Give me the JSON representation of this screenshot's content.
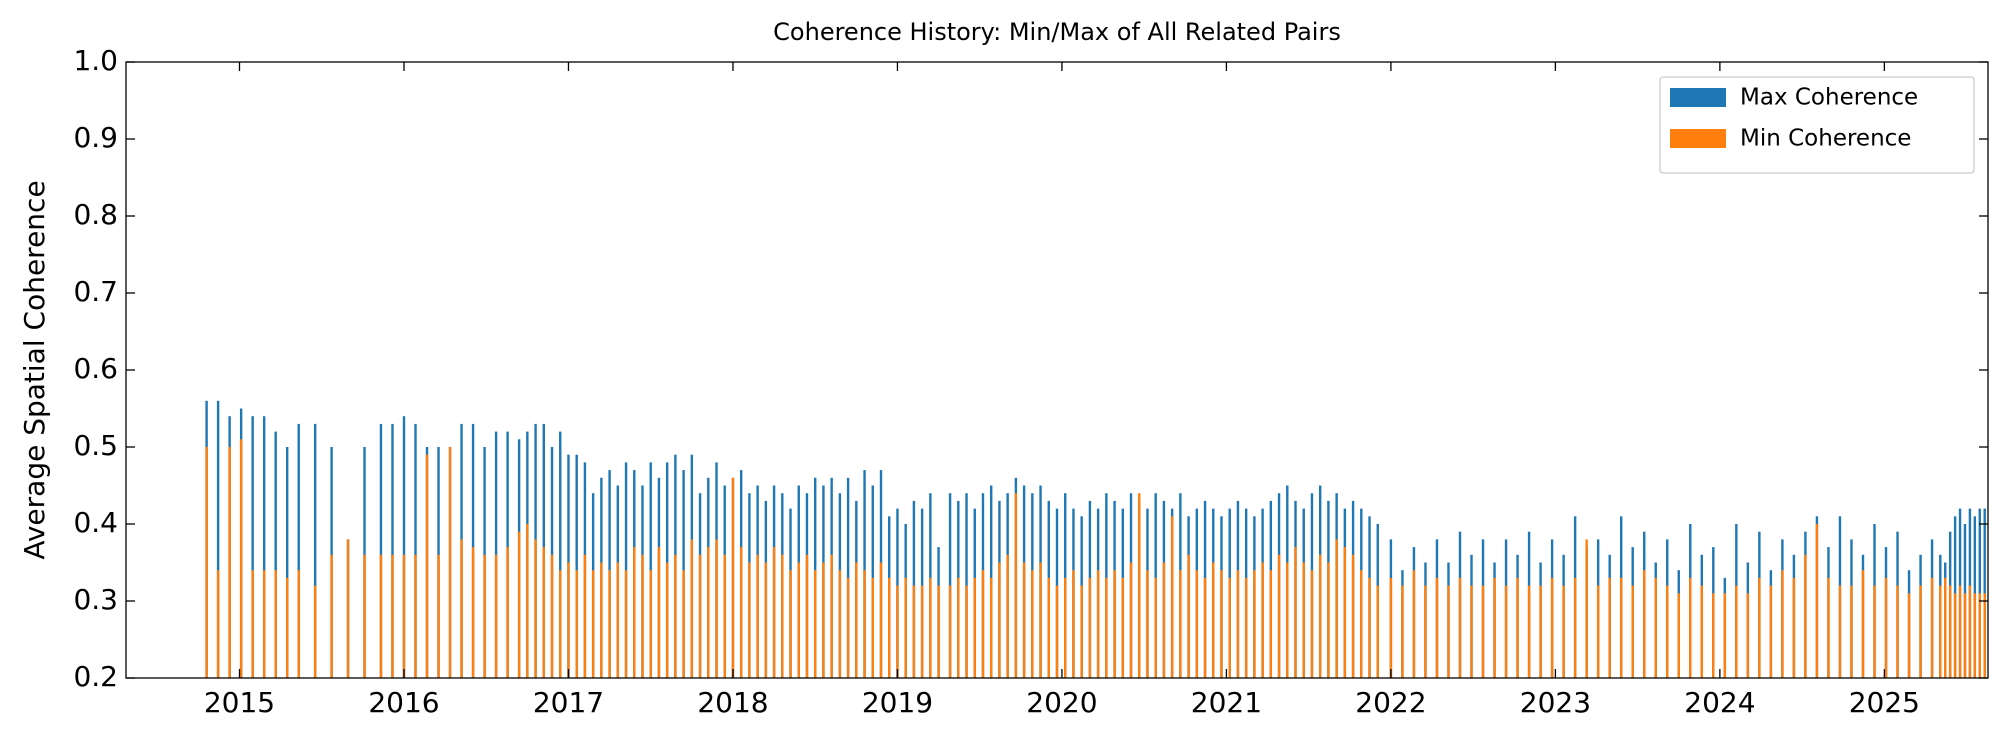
{
  "chart_data": {
    "type": "bar",
    "title": "Coherence History: Min/Max of All Related Pairs",
    "y_label": "Average Spatial Coherence",
    "xlim": [
      2014.31,
      2025.63
    ],
    "xticks": [
      2015,
      2016,
      2017,
      2018,
      2019,
      2020,
      2021,
      2022,
      2023,
      2024,
      2025
    ],
    "ylim": [
      0.2,
      1.0
    ],
    "yticks": [
      {
        "value": 0.2,
        "label": "0.2"
      },
      {
        "value": 0.3,
        "label": "0.3"
      },
      {
        "value": 0.4,
        "label": "0.4"
      },
      {
        "value": 0.5,
        "label": "0.5"
      },
      {
        "value": 0.6,
        "label": "0.6"
      },
      {
        "value": 0.7,
        "label": "0.7"
      },
      {
        "value": 0.8,
        "label": "0.8"
      },
      {
        "value": 0.9,
        "label": "0.9"
      },
      {
        "value": 1.0,
        "label": "1.0"
      }
    ],
    "legend": "upper right",
    "grid": false,
    "x": [
      2014.8,
      2014.87,
      2014.94,
      2015.01,
      2015.08,
      2015.15,
      2015.22,
      2015.29,
      2015.36,
      2015.46,
      2015.56,
      2015.66,
      2015.76,
      2015.86,
      2015.93,
      2016.0,
      2016.07,
      2016.14,
      2016.21,
      2016.28,
      2016.35,
      2016.42,
      2016.49,
      2016.56,
      2016.63,
      2016.7,
      2016.75,
      2016.8,
      2016.85,
      2016.9,
      2016.95,
      2017.0,
      2017.05,
      2017.1,
      2017.15,
      2017.2,
      2017.25,
      2017.3,
      2017.35,
      2017.4,
      2017.45,
      2017.5,
      2017.55,
      2017.6,
      2017.65,
      2017.7,
      2017.75,
      2017.8,
      2017.85,
      2017.9,
      2017.95,
      2018.0,
      2018.05,
      2018.1,
      2018.15,
      2018.2,
      2018.25,
      2018.3,
      2018.35,
      2018.4,
      2018.45,
      2018.5,
      2018.55,
      2018.6,
      2018.65,
      2018.7,
      2018.75,
      2018.8,
      2018.85,
      2018.9,
      2018.95,
      2019.0,
      2019.05,
      2019.1,
      2019.15,
      2019.2,
      2019.25,
      2019.32,
      2019.37,
      2019.42,
      2019.47,
      2019.52,
      2019.57,
      2019.62,
      2019.67,
      2019.72,
      2019.77,
      2019.82,
      2019.87,
      2019.92,
      2019.97,
      2020.02,
      2020.07,
      2020.12,
      2020.17,
      2020.22,
      2020.27,
      2020.32,
      2020.37,
      2020.42,
      2020.47,
      2020.52,
      2020.57,
      2020.62,
      2020.67,
      2020.72,
      2020.77,
      2020.82,
      2020.87,
      2020.92,
      2020.97,
      2021.02,
      2021.07,
      2021.12,
      2021.17,
      2021.22,
      2021.27,
      2021.32,
      2021.37,
      2021.42,
      2021.47,
      2021.52,
      2021.57,
      2021.62,
      2021.67,
      2021.72,
      2021.77,
      2021.82,
      2021.87,
      2021.92,
      2022.0,
      2022.07,
      2022.14,
      2022.21,
      2022.28,
      2022.35,
      2022.42,
      2022.49,
      2022.56,
      2022.63,
      2022.7,
      2022.77,
      2022.84,
      2022.91,
      2022.98,
      2023.05,
      2023.12,
      2023.19,
      2023.26,
      2023.33,
      2023.4,
      2023.47,
      2023.54,
      2023.61,
      2023.68,
      2023.75,
      2023.82,
      2023.89,
      2023.96,
      2024.03,
      2024.1,
      2024.17,
      2024.24,
      2024.31,
      2024.38,
      2024.45,
      2024.52,
      2024.59,
      2024.66,
      2024.73,
      2024.8,
      2024.87,
      2024.94,
      2025.01,
      2025.08,
      2025.15,
      2025.22,
      2025.29,
      2025.34,
      2025.37,
      2025.4,
      2025.43,
      2025.46,
      2025.49,
      2025.52,
      2025.55,
      2025.58,
      2025.61
    ],
    "series": [
      {
        "name": "Max Coherence",
        "color": "#1f77b4",
        "values": [
          0.56,
          0.56,
          0.54,
          0.55,
          0.54,
          0.54,
          0.52,
          0.5,
          0.53,
          0.53,
          0.5,
          0.38,
          0.5,
          0.53,
          0.53,
          0.54,
          0.53,
          0.5,
          0.5,
          0.5,
          0.53,
          0.53,
          0.5,
          0.52,
          0.52,
          0.51,
          0.52,
          0.53,
          0.53,
          0.5,
          0.52,
          0.49,
          0.49,
          0.48,
          0.44,
          0.46,
          0.47,
          0.45,
          0.48,
          0.47,
          0.45,
          0.48,
          0.46,
          0.48,
          0.49,
          0.47,
          0.49,
          0.44,
          0.46,
          0.48,
          0.45,
          0.46,
          0.47,
          0.44,
          0.45,
          0.43,
          0.45,
          0.44,
          0.42,
          0.45,
          0.44,
          0.46,
          0.45,
          0.46,
          0.44,
          0.46,
          0.43,
          0.47,
          0.45,
          0.47,
          0.41,
          0.42,
          0.4,
          0.43,
          0.42,
          0.44,
          0.37,
          0.44,
          0.43,
          0.44,
          0.42,
          0.44,
          0.45,
          0.43,
          0.44,
          0.46,
          0.45,
          0.44,
          0.45,
          0.43,
          0.42,
          0.44,
          0.42,
          0.41,
          0.43,
          0.42,
          0.44,
          0.43,
          0.42,
          0.44,
          0.43,
          0.42,
          0.44,
          0.43,
          0.42,
          0.44,
          0.41,
          0.42,
          0.43,
          0.42,
          0.41,
          0.42,
          0.43,
          0.42,
          0.41,
          0.42,
          0.43,
          0.44,
          0.45,
          0.43,
          0.42,
          0.44,
          0.45,
          0.43,
          0.44,
          0.42,
          0.43,
          0.42,
          0.41,
          0.4,
          0.38,
          0.34,
          0.37,
          0.35,
          0.38,
          0.35,
          0.39,
          0.36,
          0.38,
          0.35,
          0.38,
          0.36,
          0.39,
          0.35,
          0.38,
          0.36,
          0.41,
          0.37,
          0.38,
          0.36,
          0.41,
          0.37,
          0.39,
          0.35,
          0.38,
          0.34,
          0.4,
          0.36,
          0.37,
          0.33,
          0.4,
          0.35,
          0.39,
          0.34,
          0.38,
          0.36,
          0.39,
          0.41,
          0.37,
          0.41,
          0.38,
          0.36,
          0.4,
          0.37,
          0.39,
          0.34,
          0.36,
          0.38,
          0.36,
          0.35,
          0.39,
          0.41,
          0.42,
          0.4,
          0.42,
          0.41,
          0.42,
          0.42
        ]
      },
      {
        "name": "Min Coherence",
        "color": "#ff7f0e",
        "values": [
          0.5,
          0.34,
          0.5,
          0.51,
          0.34,
          0.34,
          0.34,
          0.33,
          0.34,
          0.32,
          0.36,
          0.38,
          0.36,
          0.36,
          0.36,
          0.36,
          0.36,
          0.49,
          0.36,
          0.5,
          0.38,
          0.37,
          0.36,
          0.36,
          0.37,
          0.39,
          0.4,
          0.38,
          0.37,
          0.36,
          0.34,
          0.35,
          0.34,
          0.36,
          0.34,
          0.35,
          0.34,
          0.35,
          0.34,
          0.37,
          0.36,
          0.34,
          0.37,
          0.35,
          0.36,
          0.34,
          0.38,
          0.36,
          0.37,
          0.38,
          0.36,
          0.46,
          0.37,
          0.35,
          0.36,
          0.35,
          0.37,
          0.36,
          0.34,
          0.35,
          0.36,
          0.34,
          0.35,
          0.36,
          0.34,
          0.33,
          0.35,
          0.34,
          0.33,
          0.35,
          0.33,
          0.32,
          0.33,
          0.32,
          0.32,
          0.33,
          0.32,
          0.32,
          0.33,
          0.32,
          0.33,
          0.34,
          0.33,
          0.35,
          0.36,
          0.44,
          0.35,
          0.34,
          0.35,
          0.33,
          0.32,
          0.33,
          0.34,
          0.32,
          0.33,
          0.34,
          0.33,
          0.34,
          0.33,
          0.35,
          0.44,
          0.34,
          0.33,
          0.35,
          0.41,
          0.34,
          0.36,
          0.34,
          0.33,
          0.35,
          0.34,
          0.33,
          0.34,
          0.33,
          0.34,
          0.35,
          0.34,
          0.36,
          0.35,
          0.37,
          0.35,
          0.34,
          0.36,
          0.35,
          0.38,
          0.37,
          0.36,
          0.34,
          0.33,
          0.32,
          0.33,
          0.32,
          0.34,
          0.32,
          0.33,
          0.32,
          0.33,
          0.32,
          0.32,
          0.33,
          0.32,
          0.33,
          0.32,
          0.32,
          0.33,
          0.32,
          0.33,
          0.38,
          0.32,
          0.33,
          0.33,
          0.32,
          0.34,
          0.33,
          0.32,
          0.31,
          0.33,
          0.32,
          0.31,
          0.31,
          0.32,
          0.31,
          0.33,
          0.32,
          0.34,
          0.33,
          0.36,
          0.4,
          0.33,
          0.32,
          0.32,
          0.34,
          0.32,
          0.33,
          0.32,
          0.31,
          0.32,
          0.33,
          0.32,
          0.33,
          0.32,
          0.31,
          0.32,
          0.31,
          0.32,
          0.31,
          0.31,
          0.31
        ]
      }
    ]
  }
}
